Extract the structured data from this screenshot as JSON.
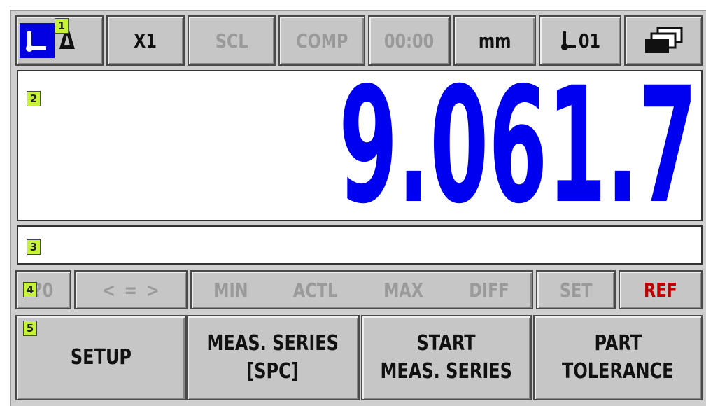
{
  "status_bar": {
    "delta": "Δ",
    "axis": "X1",
    "scale": "SCL",
    "comp": "COMP",
    "timer": "00:00",
    "unit": "mm",
    "datum": "01"
  },
  "display": {
    "value": "9.061.7"
  },
  "info_row": {
    "p0": "?0",
    "compare": "< = >",
    "stats": [
      "MIN",
      "ACTL",
      "MAX",
      "DIFF"
    ],
    "set": "SET",
    "ref": "REF"
  },
  "softkeys": [
    {
      "lines": [
        "SETUP"
      ]
    },
    {
      "lines": [
        "MEAS. SERIES",
        "[SPC]"
      ]
    },
    {
      "lines": [
        "START",
        "MEAS. SERIES"
      ]
    },
    {
      "lines": [
        "PART",
        "TOLERANCE"
      ]
    }
  ],
  "callouts": [
    "1",
    "2",
    "3",
    "4",
    "5"
  ]
}
